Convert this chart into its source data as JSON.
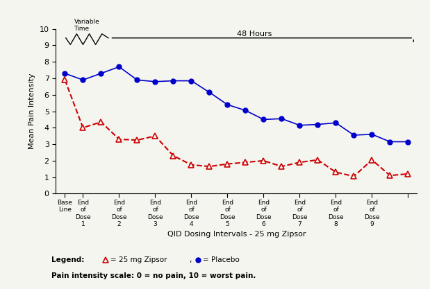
{
  "placebo_x": [
    0,
    1,
    2,
    3,
    4,
    5,
    6,
    7,
    8,
    9,
    10,
    11,
    12,
    13,
    14,
    15,
    16,
    17,
    18,
    19
  ],
  "placebo_y": [
    7.3,
    6.9,
    7.3,
    7.7,
    6.9,
    6.8,
    6.85,
    6.85,
    6.15,
    5.4,
    5.05,
    4.5,
    4.55,
    4.15,
    4.2,
    4.3,
    3.55,
    3.6,
    3.15,
    3.15
  ],
  "zipsor_x": [
    0,
    1,
    2,
    3,
    4,
    5,
    6,
    7,
    8,
    9,
    10,
    11,
    12,
    13,
    14,
    15,
    16,
    17,
    18,
    19
  ],
  "zipsor_y": [
    6.9,
    4.0,
    4.35,
    3.3,
    3.25,
    3.5,
    2.3,
    1.75,
    1.65,
    1.8,
    1.9,
    2.0,
    1.65,
    1.9,
    2.05,
    1.3,
    1.05,
    2.05,
    1.1,
    1.2
  ],
  "placebo_color": "#0000cc",
  "zipsor_color": "#cc0000",
  "labeled_tick_positions": [
    0,
    1,
    3,
    5,
    7,
    9,
    11,
    13,
    15,
    17,
    19
  ],
  "labeled_tick_labels": [
    "Base\nLine",
    "End\nof\nDose\n1",
    "End\nof\nDose\n2",
    "End\nof\nDose\n3",
    "End\nof\nDose\n4",
    "End\nof\nDose\n5",
    "End\nof\nDose\n6",
    "End\nof\nDose\n7",
    "End\nof\nDose\n8",
    "End\nof\nDose\n9",
    ""
  ],
  "xlabel": "QID Dosing Intervals - 25 mg Zipsor",
  "ylabel": "Mean Pain Intensity",
  "ylim": [
    0,
    10
  ],
  "yticks": [
    0,
    1,
    2,
    3,
    4,
    5,
    6,
    7,
    8,
    9,
    10
  ],
  "legend_zipsor": "= 25 mg Zipsor",
  "legend_placebo": "= Placebo",
  "footnote": "Pain intensity scale: 0 = no pain, 10 = worst pain.",
  "bg_color": "#f5f5f0",
  "hours_label": "48 Hours",
  "variable_time_label": "Variable\nTime"
}
